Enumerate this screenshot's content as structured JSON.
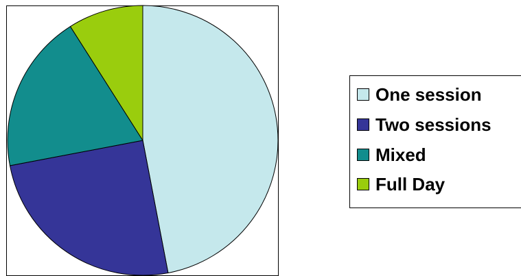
{
  "chart_data": {
    "type": "pie",
    "title": "",
    "slices": [
      {
        "label": "One session",
        "value": 47,
        "color": "#c5e8ec"
      },
      {
        "label": "Two sessions",
        "value": 25,
        "color": "#353598"
      },
      {
        "label": "Mixed",
        "value": 19,
        "color": "#128d8d"
      },
      {
        "label": "Full Day",
        "value": 9,
        "color": "#9acd0d"
      }
    ],
    "start_angle_deg": 0,
    "direction": "clockwise",
    "legend_placement": "right"
  }
}
